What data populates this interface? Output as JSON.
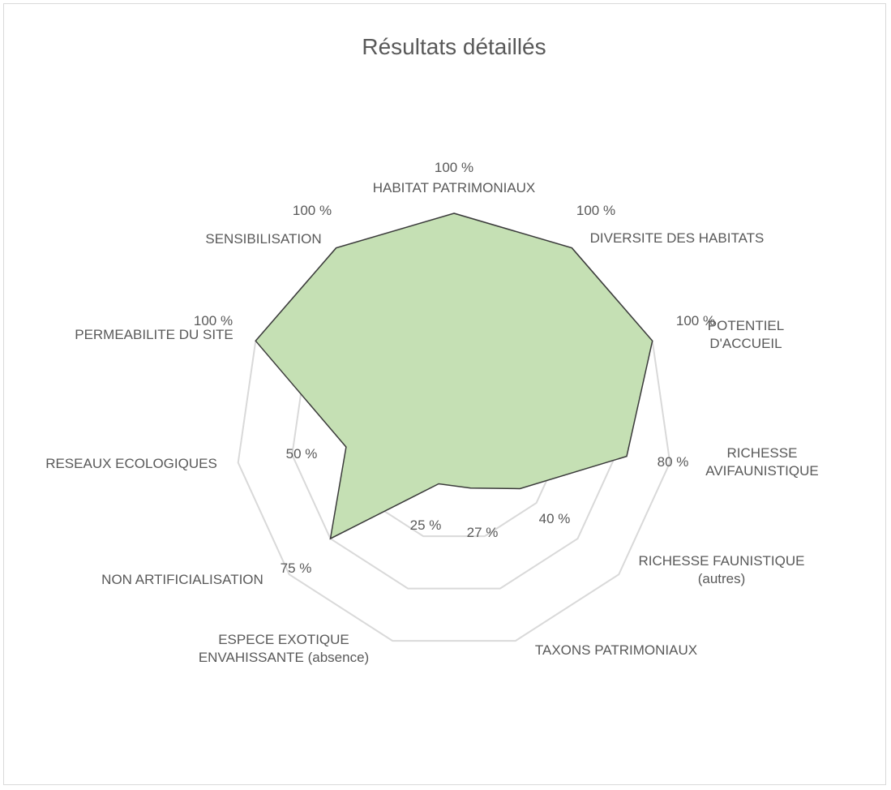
{
  "chart_data": {
    "type": "radar",
    "title": "Résultats détaillés",
    "categories": [
      "HABITAT PATRIMONIAUX",
      "DIVERSITE DES HABITATS",
      "POTENTIEL D'ACCUEIL",
      "RICHESSE\nAVIFAUNISTIQUE",
      "RICHESSE FAUNISTIQUE\n(autres)",
      "TAXONS PATRIMONIAUX",
      "ESPECE EXOTIQUE\nENVAHISSANTE (absence)",
      "NON ARTIFICIALISATION",
      "RESEAUX ECOLOGIQUES",
      "PERMEABILITE DU SITE",
      "SENSIBILISATION"
    ],
    "values": [
      100,
      100,
      100,
      80,
      40,
      27,
      25,
      75,
      50,
      100,
      100
    ],
    "value_labels": [
      "100 %",
      "100 %",
      "100 %",
      "80 %",
      "40 %",
      "27 %",
      "25 %",
      "75 %",
      "50 %",
      "100 %",
      "100 %"
    ],
    "color": "#c5e0b4",
    "line_color": "#3a3a3a",
    "grid_color": "#d9d9d9",
    "ylim": [
      0,
      100
    ],
    "yticks": [
      0,
      25,
      50,
      75,
      100
    ],
    "grid": true
  }
}
